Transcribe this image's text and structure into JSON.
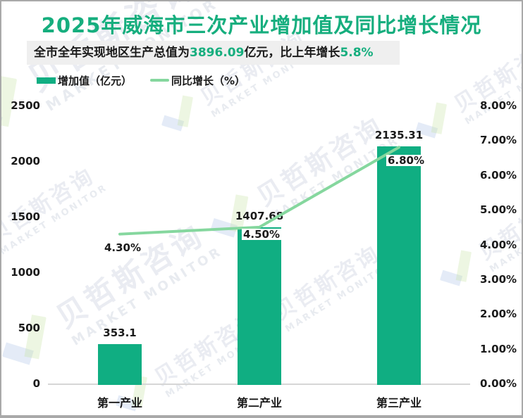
{
  "title": "2025年威海市三次产业增加值及同比增长情况",
  "subtitle": {
    "prefix": "全市全年实现地区生产总值为",
    "gdp_value": "3896.09",
    "mid": "亿元，比上年增长",
    "growth_value": "5.8%"
  },
  "legend": [
    {
      "label": "增加值（亿元）",
      "type": "bar"
    },
    {
      "label": "同比增长（%）",
      "type": "line"
    }
  ],
  "watermark": {
    "cn": "贝哲斯咨询",
    "en": "MARKET MONITOR"
  },
  "colors": {
    "title_green": "#16AE7E",
    "bar_green": "#10AE82",
    "line_green": "#85D79E",
    "subtitle_bg": "#EFEFEF",
    "axis_line": "#D6D6D6",
    "text_dark": "#1A1A1A"
  },
  "chart_data": {
    "type": "bar+line",
    "title": "2025年威海市三次产业增加值及同比增长情况",
    "categories": [
      "第一产业",
      "第二产业",
      "第三产业"
    ],
    "series": [
      {
        "name": "增加值（亿元）",
        "type": "bar",
        "axis": "left",
        "values": [
          353.1,
          1407.68,
          2135.31
        ],
        "labels": [
          "353.1",
          "1407.68",
          "2135.31"
        ]
      },
      {
        "name": "同比增长（%）",
        "type": "line",
        "axis": "right",
        "values": [
          4.3,
          4.5,
          6.8
        ],
        "labels": [
          "4.30%",
          "4.50%",
          "6.80%"
        ]
      }
    ],
    "left_axis": {
      "min": 0,
      "max": 2500,
      "step": 500,
      "ticks": [
        "2500",
        "2000",
        "1500",
        "1000",
        "500",
        "0"
      ]
    },
    "right_axis": {
      "min": 0,
      "max": 8,
      "step": 1,
      "ticks": [
        "8.00%",
        "7.00%",
        "6.00%",
        "5.00%",
        "4.00%",
        "3.00%",
        "2.00%",
        "1.00%",
        "0.00%"
      ]
    },
    "grid": false,
    "legend_position": "top-left"
  }
}
